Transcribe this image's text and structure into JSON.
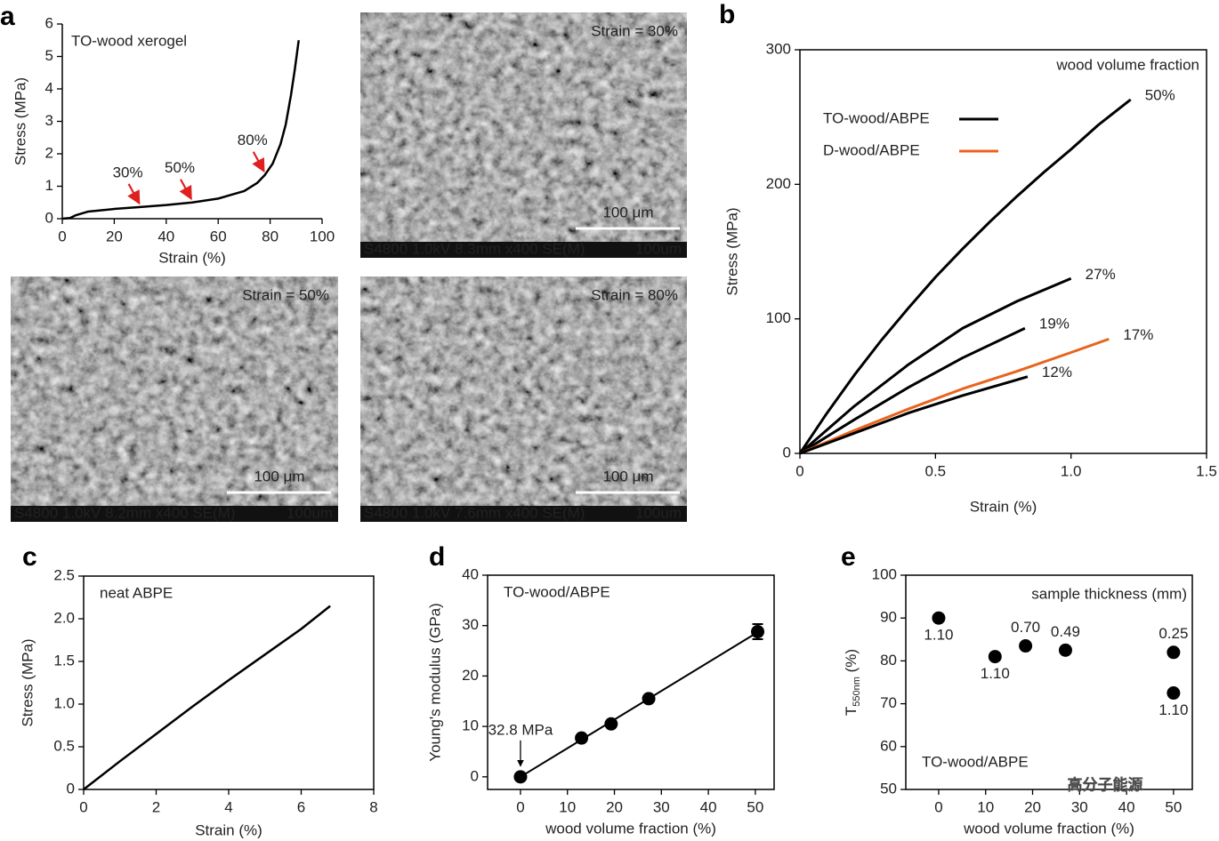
{
  "chart_data": [
    {
      "type": "line",
      "panel_label": "a",
      "title": "TO-wood xerogel",
      "xlabel": "Strain (%)",
      "ylabel": "Stress (MPa)",
      "x": [
        0,
        3,
        5,
        10,
        20,
        30,
        40,
        50,
        60,
        70,
        75,
        78,
        81,
        84,
        86,
        88,
        89.5,
        91
      ],
      "values": [
        0,
        0.02,
        0.1,
        0.22,
        0.3,
        0.36,
        0.42,
        0.5,
        0.62,
        0.85,
        1.1,
        1.35,
        1.7,
        2.3,
        2.9,
        3.8,
        4.6,
        5.5
      ],
      "color": "#000000",
      "xlim": [
        0,
        100
      ],
      "xticks": [
        0,
        20,
        40,
        60,
        80,
        100
      ],
      "ylim": [
        0,
        6
      ],
      "yticks": [
        0,
        1,
        2,
        3,
        4,
        5,
        6
      ],
      "annotations": [
        {
          "label": "30%",
          "x": 30
        },
        {
          "label": "50%",
          "x": 50
        },
        {
          "label": "80%",
          "x": 78
        }
      ],
      "annotation_color": "#e02020"
    },
    {
      "type": "line",
      "panel_label": "b",
      "legend_title": "wood volume fraction",
      "xlabel": "Strain (%)",
      "ylabel": "Stress (MPa)",
      "legend": [
        {
          "name": "TO-wood/ABPE",
          "color": "#000000"
        },
        {
          "name": "D-wood/ABPE",
          "color": "#e8641e"
        }
      ],
      "series": [
        {
          "label": "50%",
          "color": "#000000",
          "x": [
            0,
            0.1,
            0.2,
            0.3,
            0.4,
            0.5,
            0.6,
            0.7,
            0.8,
            0.9,
            1.0,
            1.1,
            1.22
          ],
          "values": [
            0,
            30,
            58,
            84,
            108,
            131,
            152,
            172,
            191,
            209,
            226,
            244,
            263
          ]
        },
        {
          "label": "27%",
          "color": "#000000",
          "x": [
            0,
            0.2,
            0.4,
            0.6,
            0.8,
            1.0
          ],
          "values": [
            0,
            35,
            66,
            93,
            113,
            130
          ]
        },
        {
          "label": "19%",
          "color": "#000000",
          "x": [
            0,
            0.2,
            0.4,
            0.6,
            0.83
          ],
          "values": [
            0,
            25,
            49,
            71,
            93
          ]
        },
        {
          "label": "17%",
          "color": "#e8641e",
          "x": [
            0,
            0.2,
            0.4,
            0.6,
            0.8,
            1.0,
            1.14
          ],
          "values": [
            0,
            17,
            33,
            48,
            61,
            75,
            85
          ]
        },
        {
          "label": "12%",
          "color": "#000000",
          "x": [
            0,
            0.2,
            0.4,
            0.6,
            0.84
          ],
          "values": [
            0,
            15,
            30,
            43,
            57
          ]
        }
      ],
      "xlim": [
        0,
        1.5
      ],
      "xticks": [
        0,
        0.5,
        {
          "value": 1,
          "label": "1.0"
        },
        1.5
      ],
      "ylim": [
        0,
        300
      ],
      "yticks": [
        0,
        100,
        200,
        300
      ]
    },
    {
      "type": "line",
      "panel_label": "c",
      "title": "neat ABPE",
      "xlabel": "Strain (%)",
      "ylabel": "Stress (MPa)",
      "x": [
        0,
        1,
        2,
        3,
        4,
        5,
        6,
        6.8
      ],
      "values": [
        0,
        0.33,
        0.65,
        0.97,
        1.28,
        1.58,
        1.88,
        2.15
      ],
      "color": "#000000",
      "xlim": [
        0,
        8
      ],
      "xticks": [
        0,
        2,
        4,
        6,
        8
      ],
      "ylim": [
        0,
        2.5
      ],
      "yticks": [
        0,
        0.5,
        {
          "value": 1,
          "label": "1.0"
        },
        1.5,
        {
          "value": 2,
          "label": "2.0"
        },
        2.5
      ]
    },
    {
      "type": "scatter",
      "panel_label": "d",
      "title": "TO-wood/ABPE",
      "xlabel": "wood volume fraction (%)",
      "ylabel": "Young's modulus (GPa)",
      "x": [
        0,
        13,
        19.3,
        27.3,
        50.5
      ],
      "values": [
        0,
        7.7,
        10.5,
        15.5,
        28.8
      ],
      "errors": [
        null,
        null,
        null,
        null,
        1.5
      ],
      "color": "#000000",
      "fit": {
        "x": [
          0,
          50
        ],
        "values": [
          0,
          28.4
        ]
      },
      "annotations": [
        {
          "label": "32.8 MPa",
          "x": 0
        }
      ],
      "annotation_color": "#000000",
      "xlim": [
        -7,
        54
      ],
      "xticks": [
        0,
        10,
        20,
        30,
        40,
        50
      ],
      "ylim": [
        -2.5,
        40
      ],
      "yticks": [
        0,
        10,
        20,
        30,
        40
      ]
    },
    {
      "type": "scatter",
      "panel_label": "e",
      "title": "TO-wood/ABPE",
      "subtitle": "sample thickness (mm)",
      "xlabel": "wood volume fraction (%)",
      "ylabel_parts": [
        "T",
        "550nm",
        " (%)"
      ],
      "x": [
        0,
        12,
        18.5,
        27,
        50,
        50
      ],
      "values": [
        90,
        81,
        83.5,
        82.5,
        82,
        72.5
      ],
      "color": "#000000",
      "point_labels": [
        "1.10",
        "1.10",
        "0.70",
        "0.49",
        "0.25",
        "1.10"
      ],
      "label_color": "#2e6fb5",
      "xlim": [
        -7,
        54
      ],
      "xticks": [
        0,
        10,
        20,
        30,
        40,
        50
      ],
      "ylim": [
        50,
        100
      ],
      "yticks": [
        50,
        60,
        70,
        80,
        90,
        100
      ]
    }
  ],
  "images": [
    {
      "strain_label": "Strain = 30%",
      "scale_bar": "100 μm",
      "footer": "S4800 1.0kV 8.3mm x400 SE(M)",
      "footer_right": "100um"
    },
    {
      "strain_label": "Strain = 50%",
      "scale_bar": "100 μm",
      "footer": "S4800 1.0kV 8.2mm x400 SE(M)",
      "footer_right": "100um"
    },
    {
      "strain_label": "Strain = 80%",
      "scale_bar": "100 μm",
      "footer": "S4800 1.0kV 7.6mm x400 SE(M)",
      "footer_right": "100um"
    }
  ],
  "watermark": "高分子能源"
}
